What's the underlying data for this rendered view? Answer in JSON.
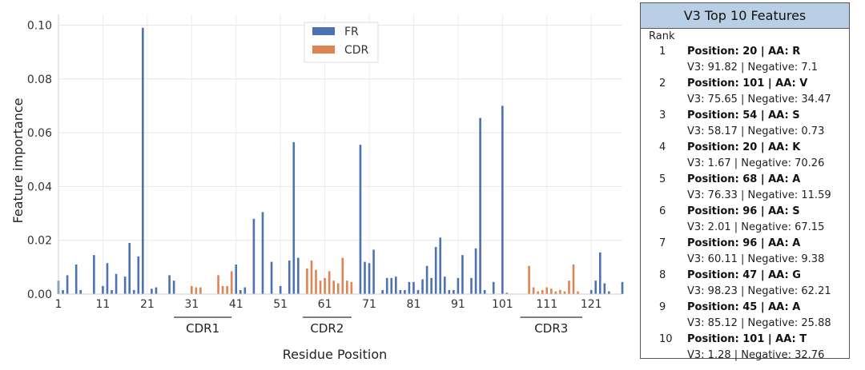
{
  "chart_data": {
    "type": "bar",
    "xlabel": "Residue Position",
    "ylabel": "Feature importance",
    "xlim": [
      1,
      128
    ],
    "ylim": [
      0,
      0.104
    ],
    "x_ticks": [
      1,
      11,
      21,
      31,
      41,
      51,
      61,
      71,
      81,
      91,
      101,
      111,
      121
    ],
    "y_ticks": [
      "0.00",
      "0.02",
      "0.04",
      "0.06",
      "0.08",
      "0.10"
    ],
    "grid": true,
    "legend_position": "top-center",
    "series": [
      {
        "name": "FR",
        "color": "#4c72b0",
        "x": [
          1,
          2,
          3,
          5,
          6,
          9,
          11,
          12,
          13,
          14,
          16,
          17,
          18,
          19,
          20,
          22,
          23,
          26,
          27,
          41,
          42,
          43,
          45,
          47,
          49,
          51,
          53,
          54,
          55,
          69,
          70,
          71,
          72,
          74,
          75,
          76,
          77,
          78,
          79,
          80,
          81,
          82,
          83,
          84,
          85,
          86,
          87,
          88,
          89,
          90,
          91,
          92,
          94,
          95,
          96,
          97,
          99,
          101,
          102,
          121,
          122,
          123,
          124,
          125,
          128
        ],
        "values": [
          0.005,
          0.0015,
          0.007,
          0.011,
          0.0015,
          0.0145,
          0.003,
          0.0115,
          0.0015,
          0.0075,
          0.0065,
          0.019,
          0.0015,
          0.014,
          0.099,
          0.002,
          0.0025,
          0.007,
          0.005,
          0.011,
          0.0015,
          0.0025,
          0.028,
          0.0305,
          0.012,
          0.003,
          0.0125,
          0.0565,
          0.0135,
          0.0555,
          0.012,
          0.0115,
          0.0165,
          0.0015,
          0.006,
          0.006,
          0.0065,
          0.0015,
          0.0015,
          0.0045,
          0.0045,
          0.0015,
          0.0055,
          0.0105,
          0.006,
          0.0175,
          0.021,
          0.0065,
          0.0015,
          0.0015,
          0.006,
          0.0145,
          0.006,
          0.017,
          0.0655,
          0.0015,
          0.0045,
          0.07,
          0.0005,
          0.0015,
          0.005,
          0.0155,
          0.004,
          0.001,
          0.0045
        ]
      },
      {
        "name": "CDR",
        "color": "#dd8452",
        "x": [
          31,
          32,
          33,
          37,
          38,
          39,
          40,
          57,
          58,
          59,
          60,
          61,
          62,
          63,
          64,
          65,
          66,
          67,
          107,
          108,
          109,
          110,
          111,
          112,
          113,
          114,
          115,
          116,
          117,
          118
        ],
        "values": [
          0.003,
          0.0025,
          0.0025,
          0.007,
          0.003,
          0.003,
          0.0085,
          0.0095,
          0.0125,
          0.009,
          0.005,
          0.006,
          0.0085,
          0.005,
          0.004,
          0.0135,
          0.005,
          0.0045,
          0.0105,
          0.0025,
          0.001,
          0.0015,
          0.0025,
          0.002,
          0.001,
          0.0015,
          0.001,
          0.005,
          0.011,
          0.001
        ]
      }
    ],
    "annotations": [
      {
        "label": "CDR1",
        "from": 27,
        "to": 40
      },
      {
        "label": "CDR2",
        "from": 56,
        "to": 67
      },
      {
        "label": "CDR3",
        "from": 105,
        "to": 119
      }
    ]
  },
  "panel": {
    "title": "V3 Top 10 Features",
    "rank_header": "Rank",
    "items": [
      {
        "rank": "1",
        "feature": "Position: 20 | AA: R",
        "scores": "V3: 91.82 | Negative: 7.1"
      },
      {
        "rank": "2",
        "feature": "Position: 101 | AA: V",
        "scores": "V3: 75.65 | Negative: 34.47"
      },
      {
        "rank": "3",
        "feature": "Position: 54 | AA: S",
        "scores": "V3: 58.17 | Negative: 0.73"
      },
      {
        "rank": "4",
        "feature": "Position: 20 | AA: K",
        "scores": "V3: 1.67 | Negative: 70.26"
      },
      {
        "rank": "5",
        "feature": "Position: 68 | AA: A",
        "scores": "V3: 76.33 | Negative: 11.59"
      },
      {
        "rank": "6",
        "feature": "Position: 96 | AA: S",
        "scores": "V3: 2.01 | Negative: 67.15"
      },
      {
        "rank": "7",
        "feature": "Position: 96 | AA: A",
        "scores": "V3: 60.11 | Negative: 9.38"
      },
      {
        "rank": "8",
        "feature": "Position: 47 | AA: G",
        "scores": "V3: 98.23 | Negative: 62.21"
      },
      {
        "rank": "9",
        "feature": "Position: 45 | AA: A",
        "scores": "V3: 85.12 | Negative: 25.88"
      },
      {
        "rank": "10",
        "feature": "Position: 101 | AA: T",
        "scores": "V3: 1.28 | Negative: 32.76"
      }
    ]
  }
}
